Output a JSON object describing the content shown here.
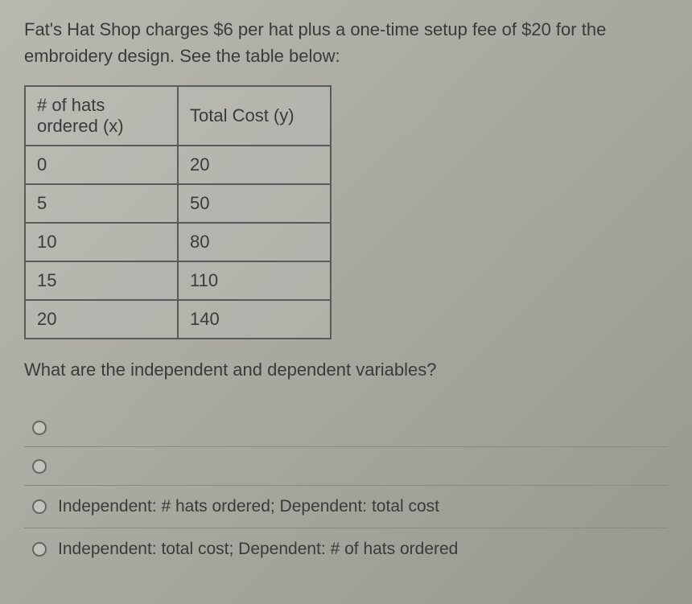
{
  "problem": {
    "line1": "Fat's Hat Shop charges $6 per hat plus a one-time setup fee of $20 for the",
    "line2": "embroidery design. See the table below:"
  },
  "table": {
    "headers": {
      "col1_line1": "# of hats",
      "col1_line2": "ordered (x)",
      "col2": "Total Cost (y)"
    },
    "rows": [
      {
        "x": "0",
        "y": "20"
      },
      {
        "x": "5",
        "y": "50"
      },
      {
        "x": "10",
        "y": "80"
      },
      {
        "x": "15",
        "y": "110"
      },
      {
        "x": "20",
        "y": "140"
      }
    ],
    "border_color": "#5a5a5a",
    "cell_fontsize": 22
  },
  "question": "What are the independent and dependent variables?",
  "options": [
    {
      "label": ""
    },
    {
      "label": ""
    },
    {
      "label": "Independent: # hats ordered; Dependent: total cost"
    },
    {
      "label": "Independent: total cost; Dependent: # of hats ordered"
    }
  ],
  "colors": {
    "background_start": "#b8b8b0",
    "background_end": "#989890",
    "text": "#3a3a3a",
    "border": "#5a5a5a",
    "divider": "#888888"
  }
}
